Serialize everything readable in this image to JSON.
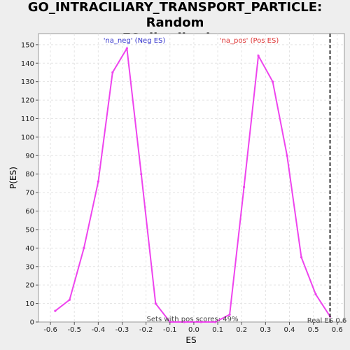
{
  "chart_data": {
    "type": "line",
    "title_lines": [
      "GO_INTRACILIARY_TRANSPORT_PARTICLE: Random",
      "ES distribution"
    ],
    "xlabel": "ES",
    "ylabel": "P(ES)",
    "xlim": [
      -0.65,
      0.63
    ],
    "ylim": [
      0,
      156
    ],
    "xticks": [
      -0.6,
      -0.5,
      -0.4,
      -0.3,
      -0.2,
      -0.1,
      0.0,
      0.1,
      0.2,
      0.3,
      0.4,
      0.5,
      0.6
    ],
    "xtick_labels": [
      "-0.6",
      "-0.5",
      "-0.4",
      "-0.3",
      "-0.2",
      "-0.1",
      "0.0",
      "0.1",
      "0.2",
      "0.3",
      "0.4",
      "0.5",
      "0.6"
    ],
    "yticks": [
      0,
      10,
      20,
      30,
      40,
      50,
      60,
      70,
      80,
      90,
      100,
      110,
      120,
      130,
      140,
      150
    ],
    "ytick_labels": [
      "0",
      "10",
      "20",
      "30",
      "40",
      "50",
      "60",
      "70",
      "80",
      "90",
      "100",
      "110",
      "120",
      "130",
      "140",
      "150"
    ],
    "grid": true,
    "series": [
      {
        "color": "#ee44ee",
        "x": [
          -0.58,
          -0.52,
          -0.46,
          -0.4,
          -0.34,
          -0.28,
          -0.22,
          -0.16,
          -0.1,
          -0.04,
          0.03,
          0.09,
          0.15,
          0.21,
          0.27,
          0.33,
          0.39,
          0.45,
          0.51,
          0.57
        ],
        "y": [
          6,
          12,
          40,
          76,
          135,
          148,
          80,
          10,
          0,
          0,
          0,
          0,
          4,
          73,
          144,
          130,
          90,
          35,
          15,
          3
        ]
      }
    ],
    "vline": {
      "x": 0.57,
      "color": "#333333",
      "style": "dashed"
    },
    "annotations": {
      "neg_label": "'na_neg' (Neg ES)",
      "neg_color": "#3333cc",
      "pos_label": "'na_pos' (Pos ES)",
      "pos_color": "#dd3333",
      "sets_text": "Sets with pos scores: 49%",
      "real_es": "Real ES 0.6"
    }
  }
}
